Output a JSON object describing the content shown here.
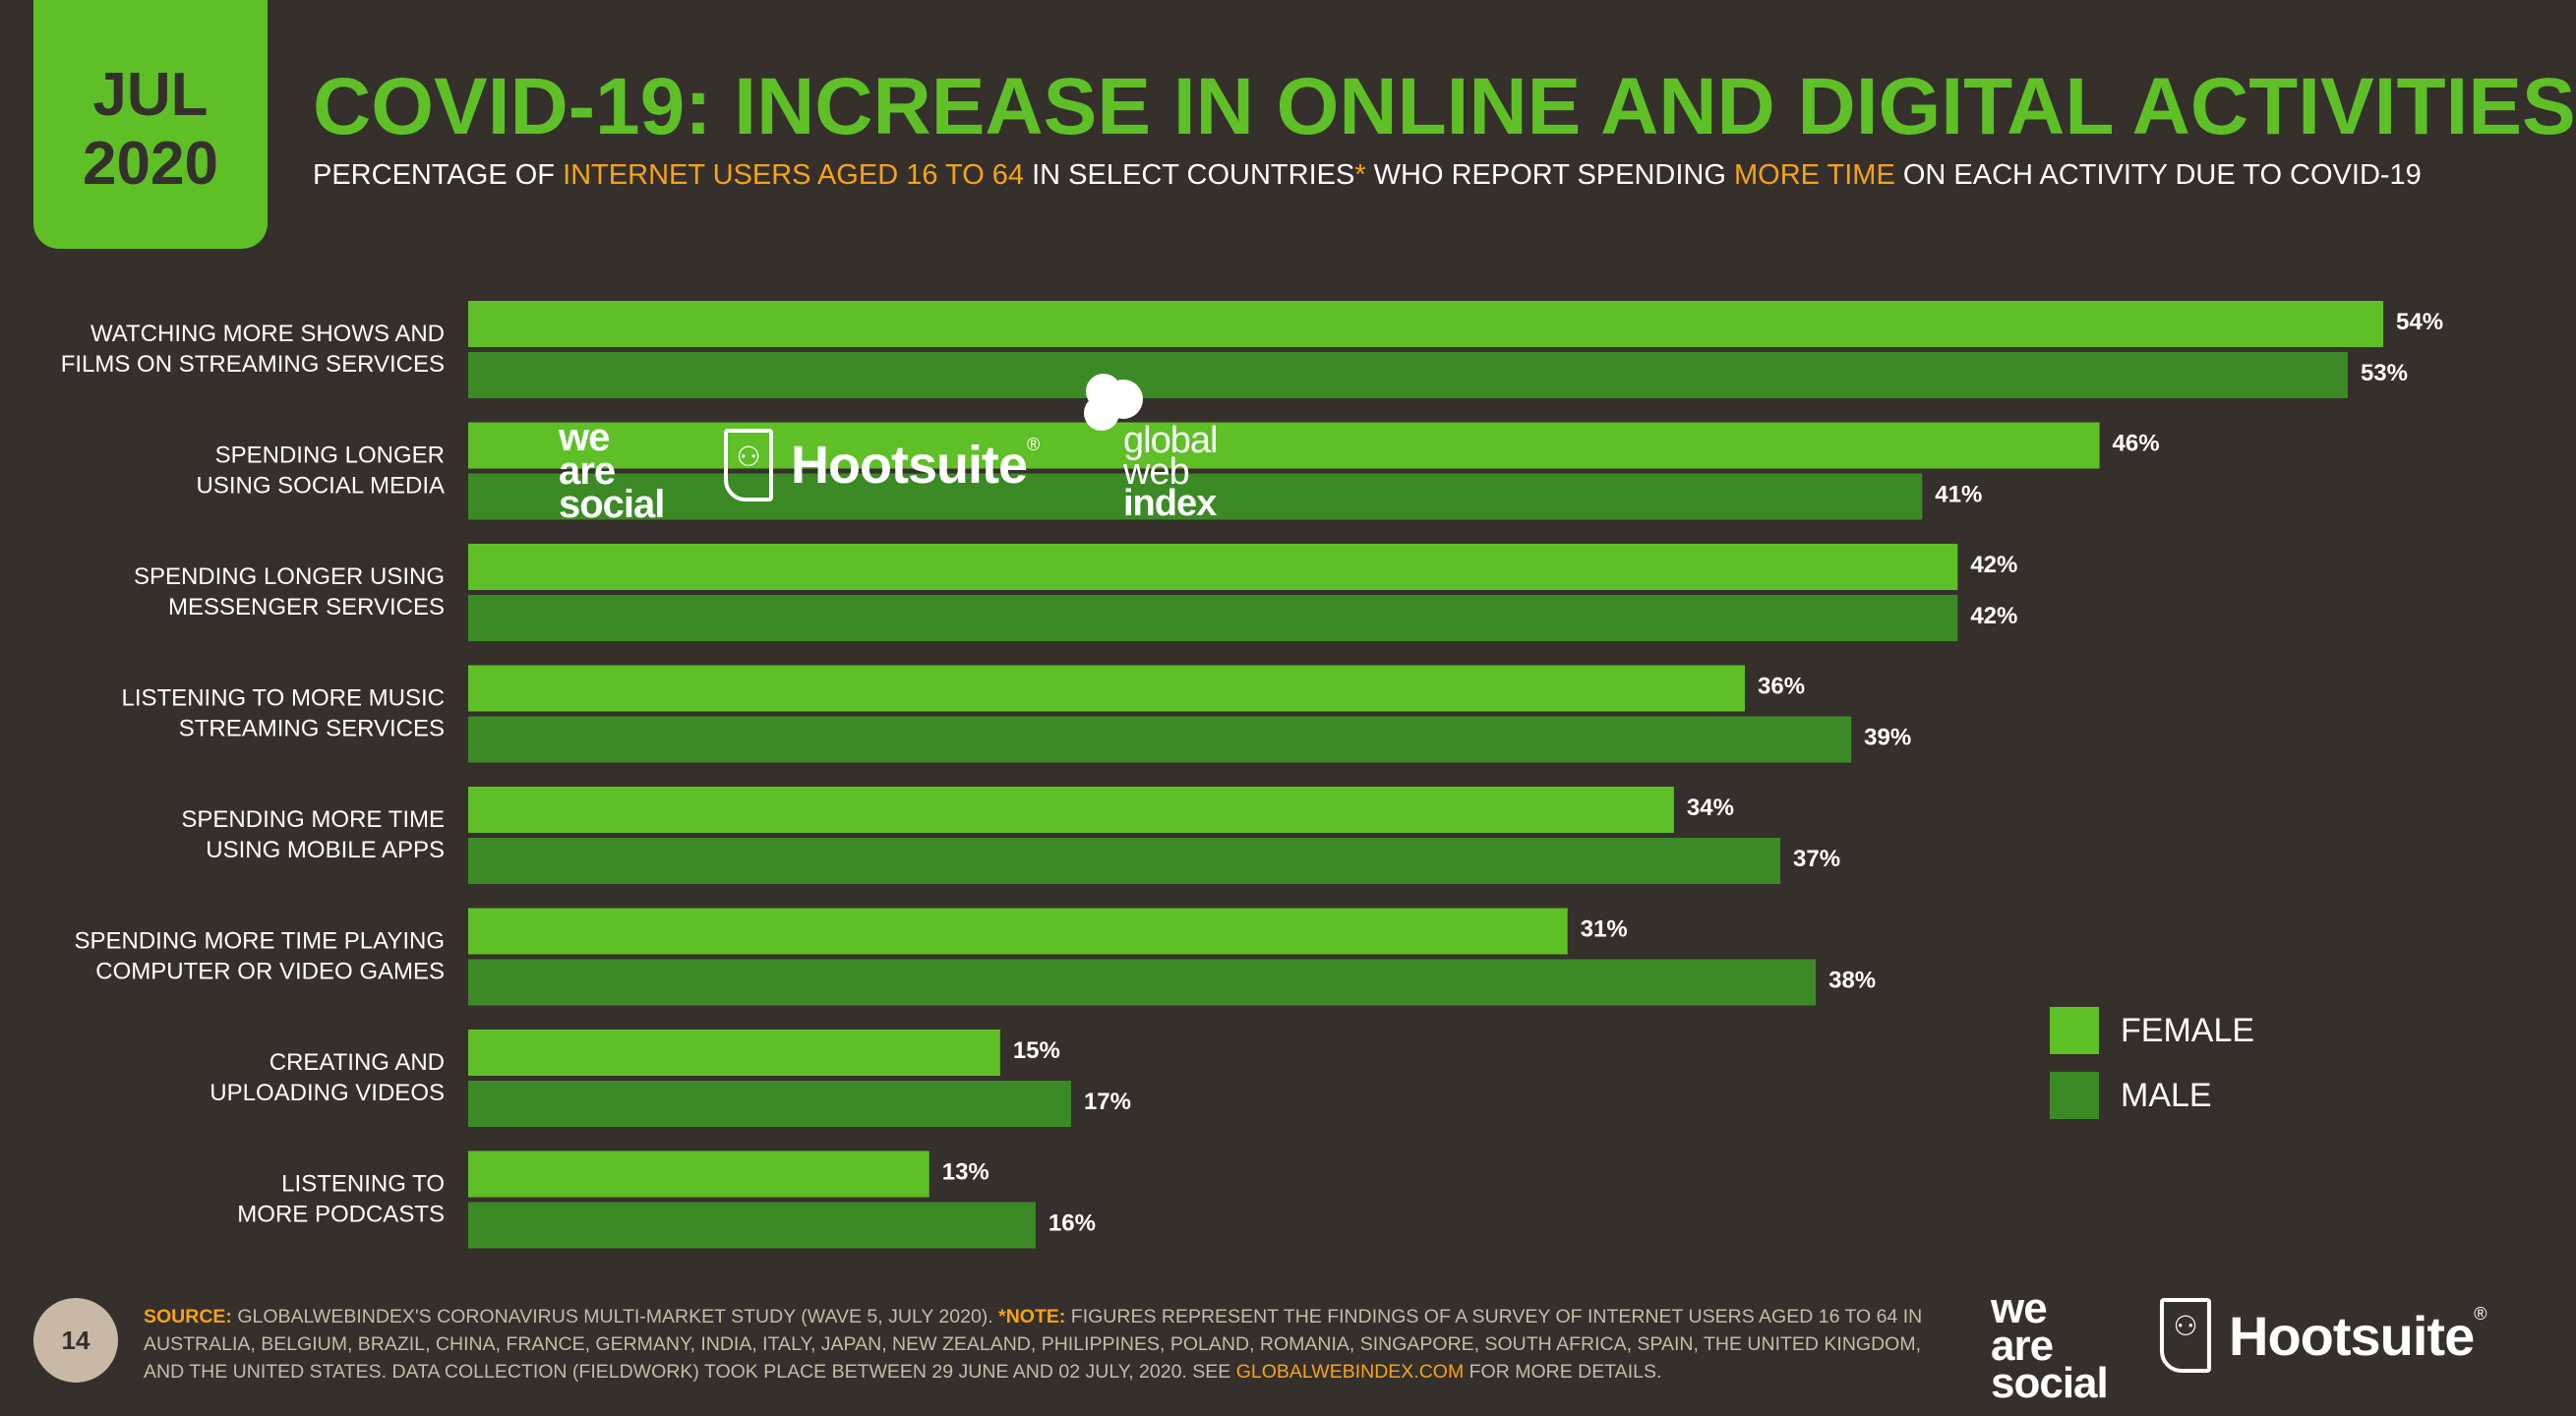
{
  "header": {
    "month": "JUL",
    "year": "2020",
    "title": "COVID-19: INCREASE IN ONLINE AND DIGITAL ACTIVITIES",
    "subtitle_parts": [
      "PERCENTAGE OF ",
      "INTERNET USERS AGED 16 TO 64",
      " IN SELECT COUNTRIES",
      "*",
      " WHO REPORT SPENDING ",
      "MORE TIME",
      " ON EACH ACTIVITY DUE TO COVID-19"
    ]
  },
  "colors": {
    "female": "#5ec026",
    "male": "#3c8a26",
    "accent": "#f7a21a",
    "background": "#35302c"
  },
  "chart_data": {
    "type": "bar",
    "orientation": "horizontal",
    "categories": [
      [
        "WATCHING MORE SHOWS AND",
        "FILMS ON STREAMING SERVICES"
      ],
      [
        "SPENDING LONGER",
        "USING SOCIAL MEDIA"
      ],
      [
        "SPENDING LONGER USING",
        "MESSENGER SERVICES"
      ],
      [
        "LISTENING TO MORE MUSIC",
        "STREAMING SERVICES"
      ],
      [
        "SPENDING MORE TIME",
        "USING MOBILE APPS"
      ],
      [
        "SPENDING MORE TIME PLAYING",
        "COMPUTER OR VIDEO GAMES"
      ],
      [
        "CREATING AND",
        "UPLOADING VIDEOS"
      ],
      [
        "LISTENING TO",
        "MORE PODCASTS"
      ]
    ],
    "series": [
      {
        "name": "FEMALE",
        "values": [
          54,
          46,
          42,
          36,
          34,
          31,
          15,
          13
        ],
        "labels": [
          "54%",
          "46%",
          "42%",
          "36%",
          "34%",
          "31%",
          "15%",
          "13%"
        ]
      },
      {
        "name": "MALE",
        "values": [
          53,
          41,
          42,
          39,
          37,
          38,
          17,
          16
        ],
        "labels": [
          "53%",
          "41%",
          "42%",
          "39%",
          "37%",
          "38%",
          "17%",
          "16%"
        ]
      }
    ],
    "xlim": [
      0,
      54
    ],
    "legend_position": "bottom-right",
    "grid": false
  },
  "legend": {
    "female": "FEMALE",
    "male": "MALE"
  },
  "watermark": {
    "weare_lines": [
      "we",
      "are",
      "social"
    ],
    "hootsuite": "Hootsuite",
    "registered": "®",
    "gwi_lines": [
      "global",
      "web",
      "index"
    ]
  },
  "footer": {
    "page_number": "14",
    "source_label": "SOURCE:",
    "source_text": " GLOBALWEBINDEX'S CORONAVIRUS MULTI-MARKET STUDY (WAVE 5, JULY 2020). ",
    "note_label": "*NOTE:",
    "note_text": " FIGURES REPRESENT THE FINDINGS OF A SURVEY OF INTERNET USERS AGED 16 TO 64 IN AUSTRALIA, BELGIUM, BRAZIL, CHINA, FRANCE, GERMANY, INDIA, ITALY, JAPAN, NEW ZEALAND, PHILIPPINES, POLAND, ROMANIA, SINGAPORE, SOUTH AFRICA, SPAIN, THE UNITED KINGDOM, AND THE UNITED STATES. DATA COLLECTION (FIELDWORK) TOOK PLACE BETWEEN 29 JUNE AND 02 JULY, 2020. SEE ",
    "link_text": "GLOBALWEBINDEX.COM",
    "end_text": " FOR MORE DETAILS.",
    "weare_lines": [
      "we",
      "are",
      "social"
    ],
    "hootsuite": "Hootsuite",
    "registered": "®"
  }
}
